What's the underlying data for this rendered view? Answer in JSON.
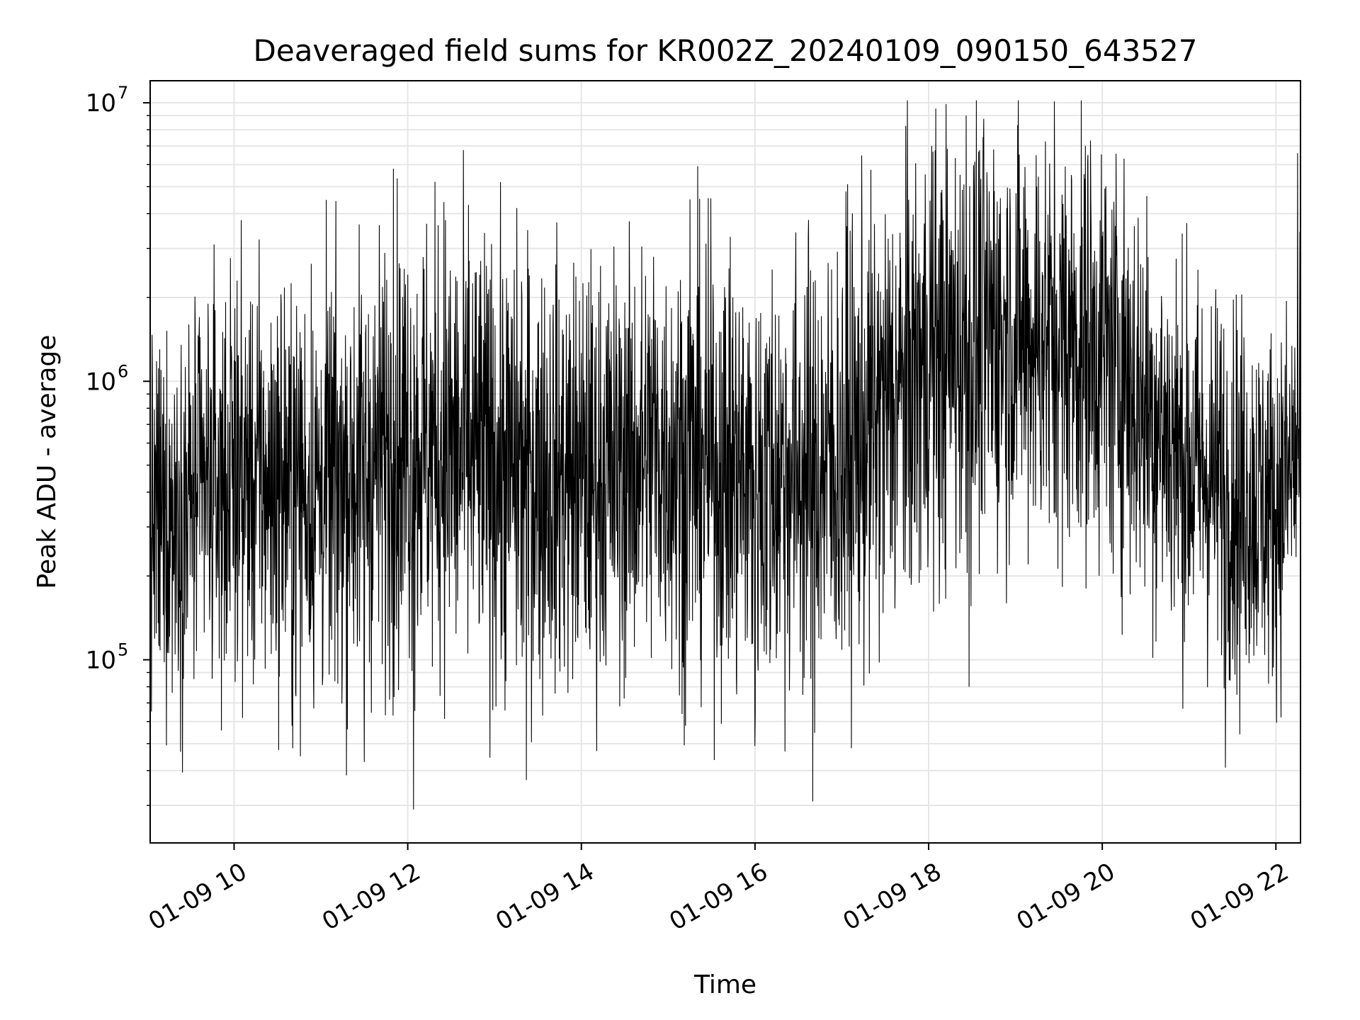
{
  "chart_data": {
    "type": "line",
    "title": "Deaveraged field sums for KR002Z_20240109_090150_643527",
    "xlabel": "Time",
    "ylabel": "Peak ADU - average",
    "yscale": "log",
    "ylim": [
      22000,
      12000000
    ],
    "xlim": [
      "2024-01-09 09:02",
      "2024-01-09 22:17"
    ],
    "grid": true,
    "line_color": "#000000",
    "x_tick_labels": [
      "01-09 10",
      "01-09 12",
      "01-09 14",
      "01-09 16",
      "01-09 18",
      "01-09 20",
      "01-09 22"
    ],
    "y_tick_labels": [
      {
        "base": "10",
        "exp": "5"
      },
      {
        "base": "10",
        "exp": "6"
      },
      {
        "base": "10",
        "exp": "7"
      }
    ],
    "series": [
      {
        "x": [
          "2024-01-09 09:00",
          "2024-01-09 10:00",
          "2024-01-09 11:00",
          "2024-01-09 12:00",
          "2024-01-09 13:00",
          "2024-01-09 14:00",
          "2024-01-09 15:00",
          "2024-01-09 16:00",
          "2024-01-09 17:00",
          "2024-01-09 18:00",
          "2024-01-09 19:00",
          "2024-01-09 20:00",
          "2024-01-09 21:00",
          "2024-01-09 22:00",
          "2024-01-09 22:15"
        ],
        "typical": [
          300000,
          450000,
          400000,
          600000,
          500000,
          450000,
          550000,
          450000,
          500000,
          1200000,
          1500000,
          1300000,
          500000,
          350000,
          550000
        ],
        "spread_factor": [
          2.4,
          2.6,
          2.8,
          3.0,
          3.0,
          2.8,
          2.8,
          3.0,
          3.0,
          3.0,
          2.8,
          2.8,
          2.6,
          2.4,
          2.4
        ],
        "extremes": [
          {
            "x": "2024-01-09 09:00",
            "y": 2000000
          },
          {
            "x": "2024-01-09 09:42",
            "y": 1900000
          },
          {
            "x": "2024-01-09 10:02",
            "y": 2300000
          },
          {
            "x": "2024-01-09 10:40",
            "y": 58000
          },
          {
            "x": "2024-01-09 11:30",
            "y": 43000
          },
          {
            "x": "2024-01-09 11:50",
            "y": 5800000
          },
          {
            "x": "2024-01-09 12:04",
            "y": 29000
          },
          {
            "x": "2024-01-09 12:25",
            "y": 4400000
          },
          {
            "x": "2024-01-09 12:42",
            "y": 4300000
          },
          {
            "x": "2024-01-09 13:22",
            "y": 37000
          },
          {
            "x": "2024-01-09 14:50",
            "y": 2800000
          },
          {
            "x": "2024-01-09 15:12",
            "y": 58000
          },
          {
            "x": "2024-01-09 15:15",
            "y": 4500000
          },
          {
            "x": "2024-01-09 16:00",
            "y": 49000
          },
          {
            "x": "2024-01-09 16:40",
            "y": 31000
          },
          {
            "x": "2024-01-09 17:04",
            "y": 5100000
          },
          {
            "x": "2024-01-09 18:02",
            "y": 7000000
          },
          {
            "x": "2024-01-09 18:26",
            "y": 9000000
          },
          {
            "x": "2024-01-09 18:28",
            "y": 80000
          },
          {
            "x": "2024-01-09 18:45",
            "y": 6800000
          },
          {
            "x": "2024-01-09 19:50",
            "y": 6500000
          },
          {
            "x": "2024-01-09 20:15",
            "y": 6300000
          },
          {
            "x": "2024-01-09 21:25",
            "y": 41000
          },
          {
            "x": "2024-01-09 21:35",
            "y": 54000
          },
          {
            "x": "2024-01-09 22:15",
            "y": 6600000
          }
        ]
      }
    ]
  }
}
